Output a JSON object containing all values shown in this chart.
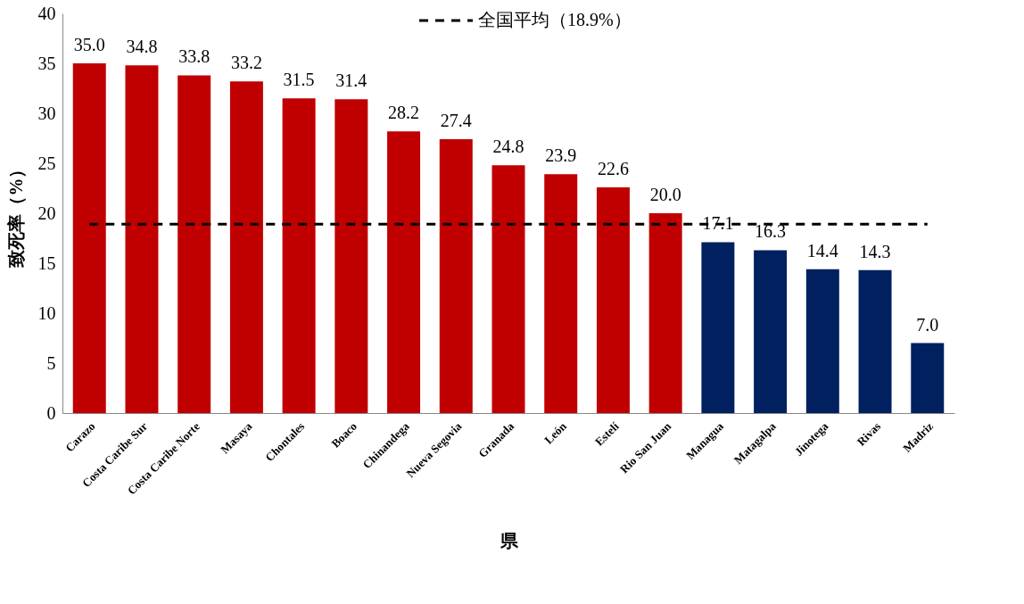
{
  "chart_data": {
    "type": "bar",
    "xlabel": "県",
    "ylabel": "致死率（%）",
    "categories": [
      "Carazo",
      "Costa Caribe Sur",
      "Costa Caribe Norte",
      "Masaya",
      "Chontales",
      "Boaco",
      "Chinandega",
      "Nueva Segovia",
      "Granada",
      "León",
      "Estelí",
      "Rio San Juan",
      "Managua",
      "Matagalpa",
      "Jinotega",
      "Rivas",
      "Madriz"
    ],
    "values": [
      35.0,
      34.8,
      33.8,
      33.2,
      31.5,
      31.4,
      28.2,
      27.4,
      24.8,
      23.9,
      22.6,
      20.0,
      17.1,
      16.3,
      14.4,
      14.3,
      7.0
    ],
    "colors": [
      "#c00000",
      "#c00000",
      "#c00000",
      "#c00000",
      "#c00000",
      "#c00000",
      "#c00000",
      "#c00000",
      "#c00000",
      "#c00000",
      "#c00000",
      "#c00000",
      "#002060",
      "#002060",
      "#002060",
      "#002060",
      "#002060"
    ],
    "value_labels": [
      "35.0",
      "34.8",
      "33.8",
      "33.2",
      "31.5",
      "31.4",
      "28.2",
      "27.4",
      "24.8",
      "23.9",
      "22.6",
      "20.0",
      "17.1",
      "16.3",
      "14.4",
      "14.3",
      "7.0"
    ],
    "ylim": [
      0,
      40
    ],
    "yticks": [
      0,
      5,
      10,
      15,
      20,
      25,
      30,
      35,
      40
    ],
    "ref_lines": [
      {
        "axis": "y",
        "value": 18.9,
        "label": "全国平均（18.9%）",
        "color": "#000000",
        "line_style": "dashed"
      }
    ],
    "grid": false
  }
}
